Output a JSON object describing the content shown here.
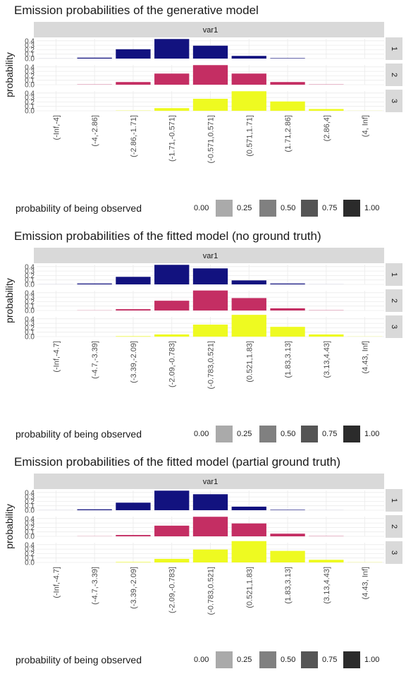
{
  "chart_data": [
    {
      "type": "bar",
      "title": "Emission probabilities of the generative model",
      "facet_column_label": "var1",
      "ylabel": "probability",
      "xlabel": "",
      "ylim": [
        0,
        0.45
      ],
      "y_ticks": [
        "0.0",
        "0.1",
        "0.2",
        "0.3",
        "0.4"
      ],
      "categories": [
        "(-Inf,-4]",
        "(-4,-2.86]",
        "(-2.86,-1.71]",
        "(-1.71,-0.571]",
        "(-0.571,0.571]",
        "(0.571,1.71]",
        "(1.71,2.86]",
        "(2.86,4]",
        "(4, Inf]"
      ],
      "series": [
        {
          "name": "1",
          "color": "#12127f",
          "values": [
            0.001,
            0.02,
            0.21,
            0.44,
            0.29,
            0.06,
            0.01,
            0,
            0
          ]
        },
        {
          "name": "2",
          "color": "#c42e63",
          "values": [
            0,
            0.005,
            0.06,
            0.25,
            0.44,
            0.25,
            0.06,
            0.005,
            0
          ]
        },
        {
          "name": "3",
          "color": "#eefa21",
          "values": [
            0,
            0,
            0.005,
            0.06,
            0.27,
            0.44,
            0.21,
            0.04,
            0.002
          ]
        }
      ],
      "legend": {
        "title": "probability of being observed",
        "position": "bottom",
        "labels": [
          "0.00",
          "0.25",
          "0.50",
          "0.75",
          "1.00"
        ]
      },
      "grid": true
    },
    {
      "type": "bar",
      "title": "Emission probabilities of the fitted model (no ground truth)",
      "facet_column_label": "var1",
      "ylabel": "probability",
      "xlabel": "",
      "ylim": [
        0,
        0.45
      ],
      "y_ticks": [
        "0.0",
        "0.1",
        "0.2",
        "0.3",
        "0.4"
      ],
      "categories": [
        "(-Inf,-4.7]",
        "(-4.7,-3.39]",
        "(-3.39,-2.09]",
        "(-2.09,-0.783]",
        "(-0.783,0.521]",
        "(0.521,1.83]",
        "(1.83,3.13]",
        "(3.13,4.43]",
        "(4.43, Inf]"
      ],
      "series": [
        {
          "name": "1",
          "color": "#12127f",
          "values": [
            0.001,
            0.02,
            0.17,
            0.44,
            0.36,
            0.09,
            0.02,
            0.001,
            0
          ]
        },
        {
          "name": "2",
          "color": "#c42e63",
          "values": [
            0,
            0.003,
            0.03,
            0.22,
            0.45,
            0.28,
            0.05,
            0.005,
            0
          ]
        },
        {
          "name": "3",
          "color": "#eefa21",
          "values": [
            0,
            0,
            0.01,
            0.05,
            0.27,
            0.49,
            0.22,
            0.05,
            0.003
          ]
        }
      ],
      "legend": {
        "title": "probability of being observed",
        "position": "bottom",
        "labels": [
          "0.00",
          "0.25",
          "0.50",
          "0.75",
          "1.00"
        ]
      },
      "grid": true
    },
    {
      "type": "bar",
      "title": "Emission probabilities of the fitted model (partial ground truth)",
      "facet_column_label": "var1",
      "ylabel": "probability",
      "xlabel": "",
      "ylim": [
        0,
        0.45
      ],
      "y_ticks": [
        "0.0",
        "0.1",
        "0.2",
        "0.3",
        "0.4"
      ],
      "categories": [
        "(-Inf,-4.7]",
        "(-4.7,-3.39]",
        "(-3.39,-2.09]",
        "(-2.09,-0.783]",
        "(-0.783,0.521]",
        "(0.521,1.83]",
        "(1.83,3.13]",
        "(3.13,4.43]",
        "(4.43, Inf]"
      ],
      "series": [
        {
          "name": "1",
          "color": "#12127f",
          "values": [
            0.001,
            0.02,
            0.17,
            0.44,
            0.36,
            0.08,
            0.01,
            0.001,
            0
          ]
        },
        {
          "name": "2",
          "color": "#c42e63",
          "values": [
            0,
            0.003,
            0.03,
            0.24,
            0.44,
            0.29,
            0.06,
            0.005,
            0
          ]
        },
        {
          "name": "3",
          "color": "#eefa21",
          "values": [
            0,
            0,
            0.01,
            0.08,
            0.29,
            0.48,
            0.26,
            0.06,
            0.004
          ]
        }
      ],
      "legend": {
        "title": "probability of being observed",
        "position": "bottom",
        "labels": [
          "0.00",
          "0.25",
          "0.50",
          "0.75",
          "1.00"
        ]
      },
      "grid": true
    }
  ]
}
